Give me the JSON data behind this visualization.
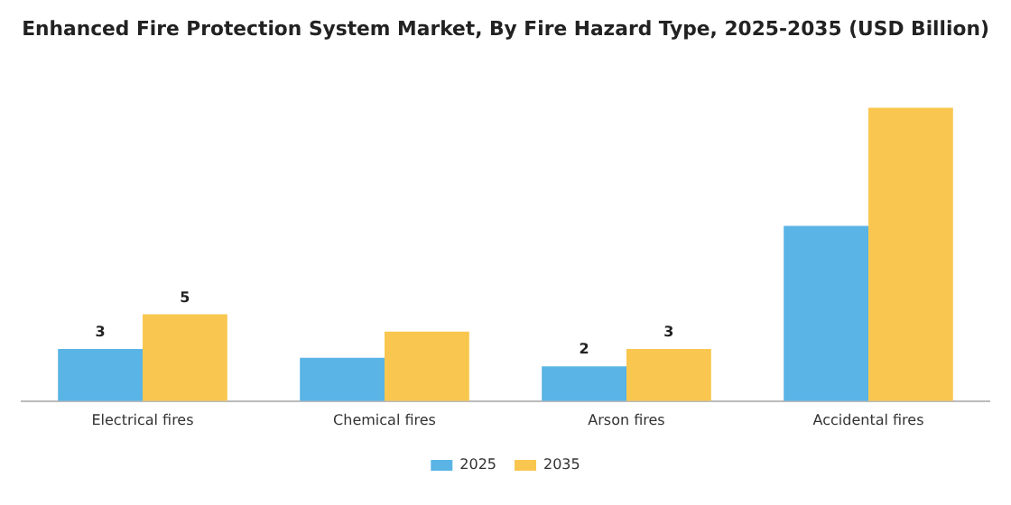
{
  "chart_data": {
    "type": "bar",
    "title": "Enhanced Fire Protection System Market, By Fire Hazard Type, 2025-2035 (USD Billion)",
    "categories": [
      "Electrical fires",
      "Chemical fires",
      "Arson fires",
      "Accidental fires"
    ],
    "series": [
      {
        "name": "2025",
        "color": "#5ab4e5",
        "values": [
          3,
          2.5,
          2,
          10.1
        ],
        "value_labels": [
          "3",
          null,
          "2",
          null
        ]
      },
      {
        "name": "2035",
        "color": "#f9c74f",
        "values": [
          5,
          4,
          3,
          16.9
        ],
        "value_labels": [
          "5",
          null,
          "3",
          null
        ]
      }
    ],
    "legend": "bottom"
  }
}
